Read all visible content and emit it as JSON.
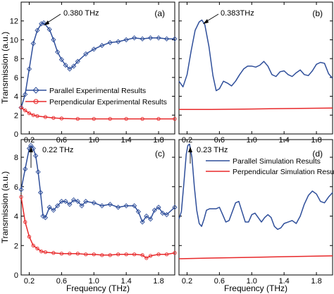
{
  "figure": {
    "y_axis_label": "Transmission (a.u.)",
    "x_axis_label": "Frequency (THz)"
  },
  "colors": {
    "parallel": "#2e4e9a",
    "perpendicular": "#e8282a",
    "axis": "#000000"
  },
  "chart_data": [
    {
      "panel": "(a)",
      "type": "line",
      "xlim": [
        0.1,
        2.0
      ],
      "ylim": [
        0,
        14
      ],
      "xticks": [
        0.2,
        0.6,
        1.0,
        1.4,
        1.8
      ],
      "yticks": [
        0,
        2,
        4,
        6,
        8,
        10,
        12
      ],
      "annotation": {
        "text": "0.380 THz",
        "x": 0.38,
        "y": 11.8
      },
      "legend_position": "center-left",
      "series": [
        {
          "name": "Parallel Experimental Results",
          "color": "#2e4e9a",
          "marker": "diamond",
          "x": [
            0.1,
            0.15,
            0.2,
            0.25,
            0.3,
            0.35,
            0.38,
            0.45,
            0.5,
            0.55,
            0.6,
            0.65,
            0.7,
            0.75,
            0.8,
            0.9,
            1.0,
            1.1,
            1.2,
            1.3,
            1.4,
            1.5,
            1.6,
            1.7,
            1.8,
            1.9,
            2.0
          ],
          "values": [
            2.8,
            4.2,
            6.9,
            9.6,
            11.0,
            11.7,
            11.8,
            11.1,
            10.0,
            8.7,
            7.9,
            7.3,
            6.9,
            7.2,
            7.7,
            8.5,
            9.0,
            9.4,
            9.7,
            9.8,
            10.0,
            10.2,
            10.1,
            10.2,
            10.2,
            10.1,
            10.1
          ]
        },
        {
          "name": "Perpendicular Experimental Results",
          "color": "#e8282a",
          "marker": "circle",
          "x": [
            0.1,
            0.15,
            0.2,
            0.25,
            0.3,
            0.4,
            0.5,
            0.6,
            0.8,
            1.0,
            1.2,
            1.4,
            1.6,
            1.8,
            2.0
          ],
          "values": [
            2.8,
            2.5,
            2.2,
            2.0,
            1.9,
            1.8,
            1.7,
            1.65,
            1.6,
            1.6,
            1.6,
            1.6,
            1.6,
            1.6,
            1.6
          ]
        }
      ]
    },
    {
      "panel": "(b)",
      "type": "line",
      "xlim": [
        0.1,
        2.0
      ],
      "ylim": [
        0,
        14
      ],
      "xticks": [
        0.2,
        0.6,
        1.0,
        1.4,
        1.8
      ],
      "yticks": [
        0,
        2,
        4,
        6,
        8,
        10,
        12
      ],
      "annotation": {
        "text": "0.383THz",
        "x": 0.383,
        "y": 12.1
      },
      "series": [
        {
          "name": "",
          "color": "#2e4e9a",
          "x": [
            0.1,
            0.15,
            0.2,
            0.25,
            0.3,
            0.35,
            0.383,
            0.42,
            0.47,
            0.52,
            0.56,
            0.6,
            0.65,
            0.7,
            0.75,
            0.8,
            0.85,
            0.9,
            0.95,
            1.0,
            1.05,
            1.1,
            1.15,
            1.2,
            1.25,
            1.3,
            1.35,
            1.4,
            1.45,
            1.5,
            1.55,
            1.6,
            1.65,
            1.7,
            1.75,
            1.8,
            1.85,
            1.9,
            1.95,
            2.0
          ],
          "values": [
            5.6,
            5.0,
            6.3,
            8.8,
            11.0,
            11.9,
            12.1,
            11.6,
            9.3,
            6.2,
            4.6,
            4.8,
            5.6,
            5.4,
            5.1,
            5.6,
            6.3,
            6.9,
            7.2,
            7.2,
            7.1,
            7.3,
            7.7,
            7.2,
            6.3,
            6.1,
            6.6,
            6.7,
            6.3,
            6.1,
            6.5,
            6.8,
            6.3,
            6.2,
            6.7,
            7.4,
            7.6,
            7.5,
            6.4,
            5.9
          ]
        },
        {
          "name": "",
          "color": "#e8282a",
          "x": [
            0.1,
            0.5,
            1.0,
            1.5,
            2.0
          ],
          "values": [
            2.6,
            2.6,
            2.65,
            2.7,
            2.75
          ]
        }
      ]
    },
    {
      "panel": "(c)",
      "type": "line",
      "xlim": [
        0.1,
        2.0
      ],
      "ylim": [
        0,
        9.2
      ],
      "xticks": [
        0.2,
        0.6,
        1.0,
        1.4,
        1.8
      ],
      "yticks": [
        0,
        2,
        4,
        6,
        8
      ],
      "annotation": {
        "text": "0.22 THz",
        "x": 0.22,
        "y": 8.8
      },
      "series": [
        {
          "name": "",
          "color": "#2e4e9a",
          "marker": "diamond",
          "x": [
            0.1,
            0.15,
            0.2,
            0.22,
            0.25,
            0.28,
            0.31,
            0.34,
            0.37,
            0.4,
            0.45,
            0.5,
            0.55,
            0.6,
            0.65,
            0.7,
            0.75,
            0.8,
            0.85,
            0.9,
            1.0,
            1.1,
            1.2,
            1.3,
            1.4,
            1.5,
            1.55,
            1.6,
            1.65,
            1.7,
            1.75,
            1.8,
            1.85,
            1.9,
            2.0
          ],
          "values": [
            5.8,
            7.2,
            8.6,
            8.8,
            8.6,
            8.1,
            7.0,
            5.6,
            4.0,
            3.9,
            4.6,
            4.4,
            4.7,
            5.0,
            5.0,
            4.8,
            5.1,
            5.0,
            4.7,
            5.0,
            4.9,
            4.7,
            4.8,
            4.6,
            4.7,
            4.7,
            4.3,
            3.6,
            4.0,
            3.8,
            4.4,
            4.6,
            4.2,
            4.1,
            4.6
          ]
        },
        {
          "name": "",
          "color": "#e8282a",
          "marker": "circle",
          "x": [
            0.1,
            0.15,
            0.2,
            0.25,
            0.3,
            0.35,
            0.4,
            0.5,
            0.6,
            0.7,
            0.8,
            0.9,
            1.0,
            1.1,
            1.2,
            1.3,
            1.4,
            1.5,
            1.6,
            1.65,
            1.7,
            1.8,
            1.9,
            2.0
          ],
          "values": [
            5.3,
            3.6,
            2.6,
            2.0,
            1.8,
            1.6,
            1.55,
            1.5,
            1.45,
            1.45,
            1.45,
            1.4,
            1.4,
            1.35,
            1.35,
            1.4,
            1.4,
            1.4,
            1.35,
            1.15,
            1.3,
            1.4,
            1.4,
            1.5
          ]
        }
      ]
    },
    {
      "panel": "(d)",
      "type": "line",
      "xlim": [
        0.1,
        2.0
      ],
      "ylim": [
        0,
        9.2
      ],
      "xticks": [
        0.2,
        0.6,
        1.0,
        1.4,
        1.8
      ],
      "yticks": [
        0,
        2,
        4,
        6,
        8
      ],
      "annotation": {
        "text": "0.23 THz",
        "x": 0.23,
        "y": 8.9
      },
      "legend_position": "top-right",
      "series": [
        {
          "name": "Parallel Simulation Results",
          "color": "#2e4e9a",
          "x": [
            0.1,
            0.13,
            0.16,
            0.19,
            0.21,
            0.23,
            0.26,
            0.29,
            0.32,
            0.35,
            0.38,
            0.41,
            0.44,
            0.48,
            0.52,
            0.56,
            0.6,
            0.64,
            0.68,
            0.72,
            0.76,
            0.8,
            0.84,
            0.88,
            0.92,
            0.96,
            1.0,
            1.04,
            1.08,
            1.12,
            1.16,
            1.2,
            1.24,
            1.28,
            1.32,
            1.36,
            1.4,
            1.45,
            1.5,
            1.55,
            1.6,
            1.65,
            1.7,
            1.75,
            1.8,
            1.85,
            1.9,
            1.95,
            2.0
          ],
          "values": [
            3.8,
            4.3,
            6.2,
            8.2,
            8.8,
            8.9,
            8.0,
            6.0,
            4.4,
            3.5,
            3.3,
            3.8,
            4.4,
            4.5,
            4.5,
            4.5,
            4.6,
            4.1,
            3.6,
            3.7,
            4.3,
            4.9,
            5.0,
            4.3,
            3.6,
            3.6,
            4.1,
            4.2,
            3.9,
            3.6,
            3.9,
            4.1,
            3.9,
            3.3,
            3.1,
            3.2,
            3.5,
            3.6,
            3.7,
            3.5,
            4.0,
            4.8,
            5.4,
            5.7,
            5.5,
            5.0,
            4.9,
            5.3,
            5.6
          ]
        },
        {
          "name": "Perpendicular Simulation Results",
          "color": "#e8282a",
          "x": [
            0.1,
            0.5,
            1.0,
            1.5,
            2.0
          ],
          "values": [
            1.1,
            1.15,
            1.2,
            1.25,
            1.3
          ]
        }
      ]
    }
  ]
}
